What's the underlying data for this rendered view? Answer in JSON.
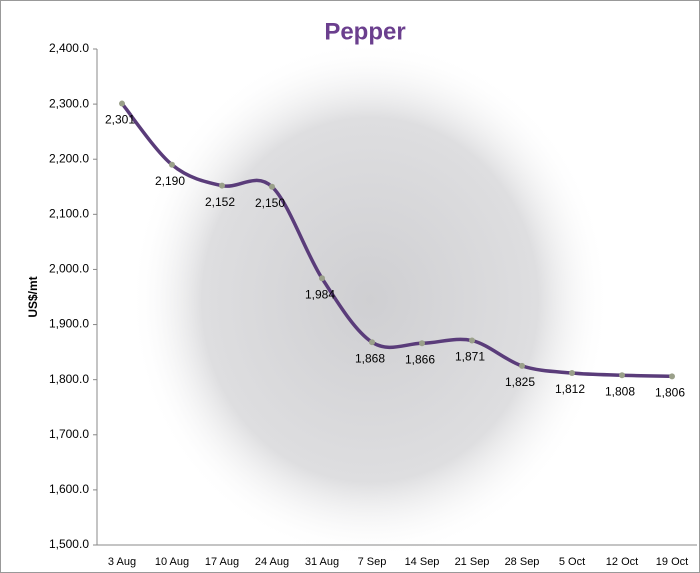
{
  "chart_data": {
    "type": "line",
    "title": "Pepper",
    "y_label": "US$/mt",
    "categories": [
      "3 Aug",
      "10 Aug",
      "17 Aug",
      "24 Aug",
      "31 Aug",
      "7 Sep",
      "14 Sep",
      "21 Sep",
      "28 Sep",
      "5 Oct",
      "12 Oct",
      "19 Oct"
    ],
    "values": [
      2301,
      2190,
      2152,
      2150,
      1984,
      1868,
      1866,
      1871,
      1825,
      1812,
      1808,
      1806
    ],
    "value_labels": [
      "2,301",
      "2,190",
      "2,152",
      "2,150",
      "1,984",
      "1,868",
      "1,866",
      "1,871",
      "1,825",
      "1,812",
      "1,808",
      "1,806"
    ],
    "color": "#5a3c7a",
    "marker_color": "#9aa08a",
    "title_color": "#6b3f8e",
    "ylim": [
      1500,
      2400
    ],
    "yticks": [
      {
        "value": 1500,
        "label": "1,500.0"
      },
      {
        "value": 1600,
        "label": "1,600.0"
      },
      {
        "value": 1700,
        "label": "1,700.0"
      },
      {
        "value": 1800,
        "label": "1,800.0"
      },
      {
        "value": 1900,
        "label": "1,900.0"
      },
      {
        "value": 2000,
        "label": "2,000.0"
      },
      {
        "value": 2100,
        "label": "2,100.0"
      },
      {
        "value": 2200,
        "label": "2,200.0"
      },
      {
        "value": 2300,
        "label": "2,300.0"
      },
      {
        "value": 2400,
        "label": "2,400.0"
      }
    ]
  }
}
